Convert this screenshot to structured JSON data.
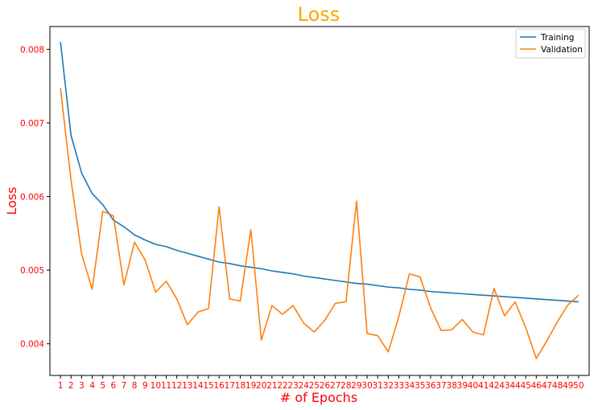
{
  "chart_data": {
    "type": "line",
    "title": "Loss",
    "xlabel": "# of Epochs",
    "ylabel": "Loss",
    "x": [
      1,
      2,
      3,
      4,
      5,
      6,
      7,
      8,
      9,
      10,
      11,
      12,
      13,
      14,
      15,
      16,
      17,
      18,
      19,
      20,
      21,
      22,
      23,
      24,
      25,
      26,
      27,
      28,
      29,
      30,
      31,
      32,
      33,
      34,
      35,
      36,
      37,
      38,
      39,
      40,
      41,
      42,
      43,
      44,
      45,
      46,
      47,
      48,
      49,
      50
    ],
    "xticks": [
      "1",
      "2",
      "3",
      "4",
      "5",
      "6",
      "7",
      "8",
      "9",
      "10",
      "11",
      "12",
      "13",
      "14",
      "15",
      "16",
      "17",
      "18",
      "19",
      "20",
      "21",
      "22",
      "23",
      "24",
      "25",
      "26",
      "27",
      "28",
      "29",
      "30",
      "31",
      "32",
      "33",
      "34",
      "35",
      "36",
      "37",
      "38",
      "39",
      "40",
      "41",
      "42",
      "43",
      "44",
      "45",
      "46",
      "47",
      "48",
      "49",
      "50"
    ],
    "yticks": [
      "0.004",
      "0.005",
      "0.006",
      "0.007",
      "0.008"
    ],
    "ylim": [
      0.00357,
      0.00831
    ],
    "xlim": [
      0.0,
      51.0
    ],
    "grid": false,
    "legend_position": "top-right",
    "series": [
      {
        "name": "Training",
        "color": "#1f77b4",
        "values": [
          0.0081,
          0.00683,
          0.00632,
          0.00604,
          0.00589,
          0.00568,
          0.00559,
          0.00548,
          0.00541,
          0.00535,
          0.00532,
          0.00527,
          0.00523,
          0.00519,
          0.00515,
          0.00511,
          0.00509,
          0.00506,
          0.00504,
          0.00502,
          0.00499,
          0.00497,
          0.00495,
          0.00492,
          0.0049,
          0.00488,
          0.00486,
          0.00484,
          0.00482,
          0.00481,
          0.00479,
          0.00477,
          0.00476,
          0.00474,
          0.00473,
          0.00471,
          0.0047,
          0.00469,
          0.00468,
          0.00467,
          0.00466,
          0.00465,
          0.00464,
          0.00463,
          0.00462,
          0.00461,
          0.0046,
          0.00459,
          0.00458,
          0.00457
        ]
      },
      {
        "name": "Validation",
        "color": "#ff7f0e",
        "values": [
          0.00747,
          0.00622,
          0.00522,
          0.00474,
          0.0058,
          0.00574,
          0.0048,
          0.00538,
          0.00514,
          0.0047,
          0.00485,
          0.00461,
          0.00426,
          0.00443,
          0.00448,
          0.00586,
          0.00461,
          0.00458,
          0.00555,
          0.00405,
          0.00452,
          0.0044,
          0.00452,
          0.00428,
          0.00416,
          0.00432,
          0.00455,
          0.00457,
          0.00594,
          0.00414,
          0.00411,
          0.00389,
          0.00437,
          0.00495,
          0.00491,
          0.00449,
          0.00418,
          0.00419,
          0.00433,
          0.00416,
          0.00412,
          0.00475,
          0.00438,
          0.00457,
          0.00422,
          0.0038,
          0.00404,
          0.0043,
          0.00453,
          0.00466
        ]
      }
    ]
  },
  "style": {
    "title_color": "#ffa500",
    "label_color": "#ff0000",
    "tick_label_color": "#ff0000"
  }
}
